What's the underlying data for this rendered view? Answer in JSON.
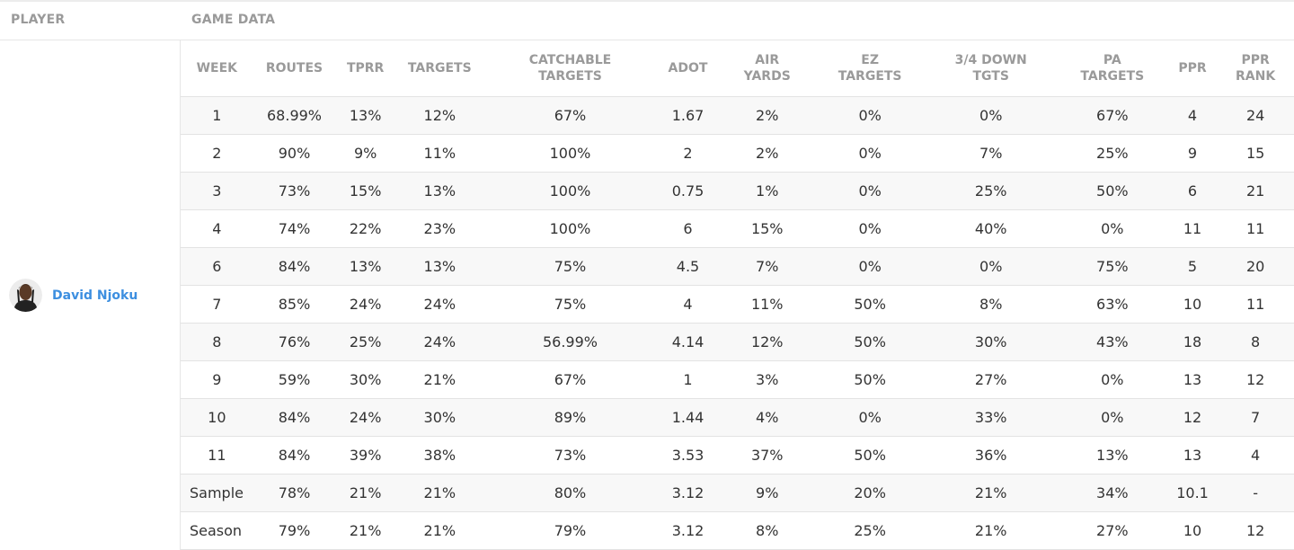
{
  "headers": {
    "player": "PLAYER",
    "game_data": "GAME DATA"
  },
  "player": {
    "name": "David Njoku",
    "avatar_icon": "player-headshot"
  },
  "columns": [
    [
      "WEEK"
    ],
    [
      "ROUTES"
    ],
    [
      "TPRR"
    ],
    [
      "TARGETS"
    ],
    [
      "CATCHABLE",
      "TARGETS"
    ],
    [
      "ADOT"
    ],
    [
      "AIR",
      "YARDS"
    ],
    [
      "EZ",
      "TARGETS"
    ],
    [
      "3/4 DOWN",
      "TGTS"
    ],
    [
      "PA",
      "TARGETS"
    ],
    [
      "PPR"
    ],
    [
      "PPR",
      "RANK"
    ]
  ],
  "rows": [
    [
      "1",
      "68.99%",
      "13%",
      "12%",
      "67%",
      "1.67",
      "2%",
      "0%",
      "0%",
      "67%",
      "4",
      "24"
    ],
    [
      "2",
      "90%",
      "9%",
      "11%",
      "100%",
      "2",
      "2%",
      "0%",
      "7%",
      "25%",
      "9",
      "15"
    ],
    [
      "3",
      "73%",
      "15%",
      "13%",
      "100%",
      "0.75",
      "1%",
      "0%",
      "25%",
      "50%",
      "6",
      "21"
    ],
    [
      "4",
      "74%",
      "22%",
      "23%",
      "100%",
      "6",
      "15%",
      "0%",
      "40%",
      "0%",
      "11",
      "11"
    ],
    [
      "6",
      "84%",
      "13%",
      "13%",
      "75%",
      "4.5",
      "7%",
      "0%",
      "0%",
      "75%",
      "5",
      "20"
    ],
    [
      "7",
      "85%",
      "24%",
      "24%",
      "75%",
      "4",
      "11%",
      "50%",
      "8%",
      "63%",
      "10",
      "11"
    ],
    [
      "8",
      "76%",
      "25%",
      "24%",
      "56.99%",
      "4.14",
      "12%",
      "50%",
      "30%",
      "43%",
      "18",
      "8"
    ],
    [
      "9",
      "59%",
      "30%",
      "21%",
      "67%",
      "1",
      "3%",
      "50%",
      "27%",
      "0%",
      "13",
      "12"
    ],
    [
      "10",
      "84%",
      "24%",
      "30%",
      "89%",
      "1.44",
      "4%",
      "0%",
      "33%",
      "0%",
      "12",
      "7"
    ],
    [
      "11",
      "84%",
      "39%",
      "38%",
      "73%",
      "3.53",
      "37%",
      "50%",
      "36%",
      "13%",
      "13",
      "4"
    ],
    [
      "Sample",
      "78%",
      "21%",
      "21%",
      "80%",
      "3.12",
      "9%",
      "20%",
      "21%",
      "34%",
      "10.1",
      "-"
    ],
    [
      "Season",
      "79%",
      "21%",
      "21%",
      "79%",
      "3.12",
      "8%",
      "25%",
      "21%",
      "27%",
      "10",
      "12"
    ]
  ]
}
